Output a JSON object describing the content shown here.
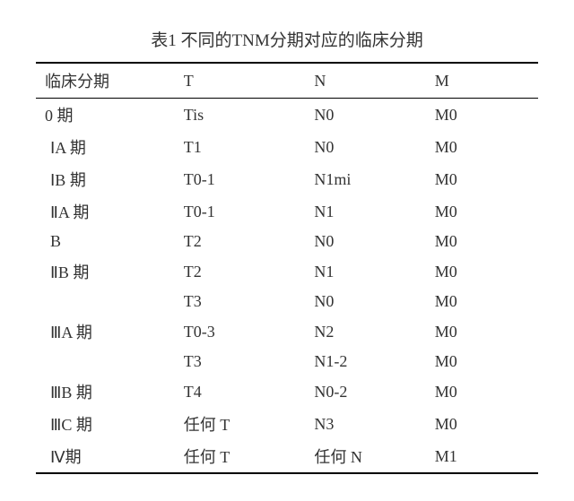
{
  "caption": "表1  不同的TNM分期对应的临床分期",
  "table": {
    "columns": [
      "临床分期",
      "T",
      "N",
      "M"
    ],
    "rows": [
      {
        "stage": "0 期",
        "t": "Tis",
        "n": "N0",
        "m": "M0",
        "indent": false
      },
      {
        "stage": "ⅠA 期",
        "t": "T1",
        "n": "N0",
        "m": "M0",
        "indent": true
      },
      {
        "stage": "ⅠB 期",
        "t": "T0-1",
        "n": "N1mi",
        "m": "M0",
        "indent": true
      },
      {
        "stage": "ⅡA 期",
        "t": "T0-1",
        "n": "N1",
        "m": "M0",
        "indent": true
      },
      {
        "stage": " B",
        "t": "T2",
        "n": "N0",
        "m": "M0",
        "indent": true
      },
      {
        "stage": "ⅡB 期",
        "t": "T2",
        "n": "N1",
        "m": "M0",
        "indent": true
      },
      {
        "stage": "",
        "t": "T3",
        "n": "N0",
        "m": "M0",
        "indent": true
      },
      {
        "stage": "ⅢA 期",
        "t": "T0-3",
        "n": "N2",
        "m": "M0",
        "indent": true
      },
      {
        "stage": "",
        "t": "T3",
        "n": "N1-2",
        "m": "M0",
        "indent": true
      },
      {
        "stage": "ⅢB 期",
        "t": "T4",
        "n": "N0-2",
        "m": "M0",
        "indent": true
      },
      {
        "stage": "ⅢC 期",
        "t": "任何 T",
        "n": "N3",
        "m": "M0",
        "indent": true
      },
      {
        "stage": "Ⅳ期",
        "t": "任何 T",
        "n": "任何 N",
        "m": "M1",
        "indent": true
      }
    ]
  },
  "colors": {
    "text": "#333333",
    "border": "#000000",
    "background": "#ffffff"
  },
  "typography": {
    "title_fontsize": 19,
    "cell_fontsize": 18,
    "font_family": "SimSun"
  }
}
